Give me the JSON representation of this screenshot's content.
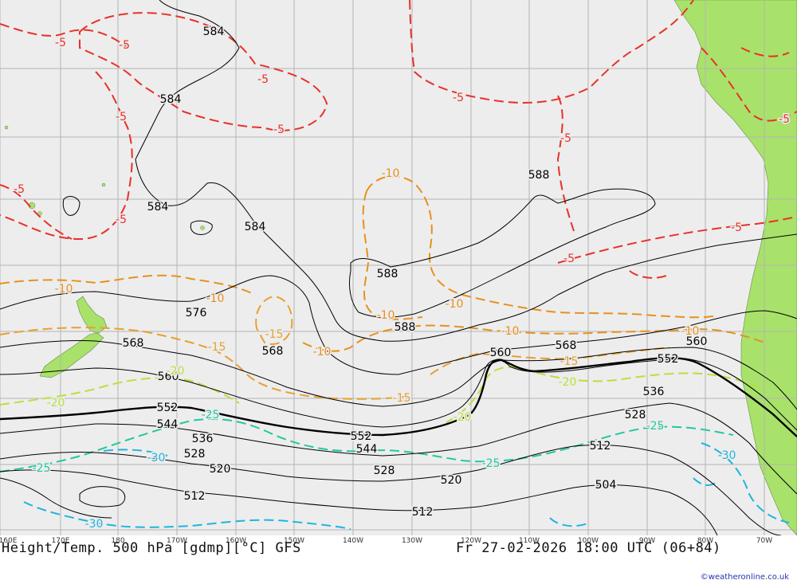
{
  "map": {
    "title": "Height/Temp. 500 hPa [gdmp][°C] GFS",
    "valid_time": "Fr 27-02-2026 18:00 UTC (06+84)",
    "credit": "©weatheronline.co.uk",
    "longitude_labels": [
      "160E",
      "170E",
      "180",
      "170W",
      "160W",
      "150W",
      "140W",
      "130W",
      "120W",
      "110W",
      "100W",
      "90W",
      "80W",
      "70W"
    ],
    "height_contour_labels": [
      "584",
      "584",
      "584",
      "584",
      "588",
      "588",
      "588",
      "576",
      "568",
      "568",
      "568",
      "560",
      "560",
      "560",
      "552",
      "552",
      "552",
      "544",
      "544",
      "536",
      "536",
      "528",
      "528",
      "528",
      "520",
      "520",
      "512",
      "512",
      "512",
      "504"
    ],
    "temp_contour_labels": [
      "-5",
      "-5",
      "-5",
      "-5",
      "-5",
      "-5",
      "-5",
      "-5",
      "-5",
      "-5",
      "-5",
      "-5",
      "-10",
      "-10",
      "-10",
      "-10",
      "-10",
      "-10",
      "-10",
      "-10",
      "-15",
      "-15",
      "-15",
      "-15",
      "-20",
      "-20",
      "-20",
      "-20",
      "-25",
      "-25",
      "-25",
      "-25",
      "-30",
      "-30",
      "-30"
    ],
    "colors": {
      "ocean": "#ededed",
      "land": "#a8e26a",
      "grid": "#b4b4b4",
      "height_contour": "#000000",
      "minus5": "#e8312a",
      "minus10": "#e8901e",
      "minus15": "#e8a030",
      "minus20": "#b8e03c",
      "minus25": "#22c8a0",
      "minus30": "#20b4e0"
    }
  }
}
